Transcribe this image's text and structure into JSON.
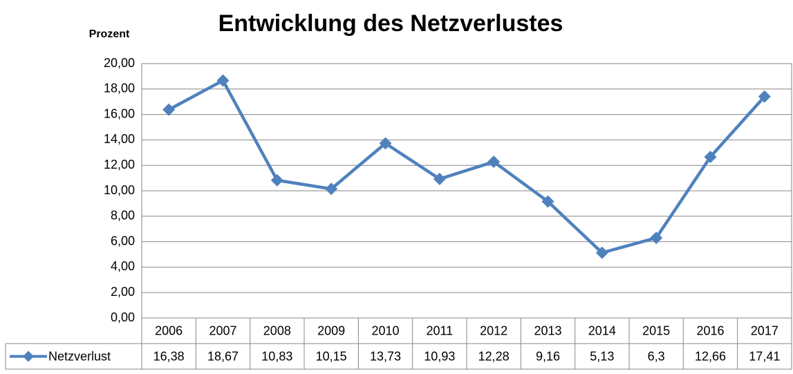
{
  "chart_data": {
    "type": "line",
    "title": "Entwicklung des Netzverlustes",
    "y_label": "Prozent",
    "categories": [
      "2006",
      "2007",
      "2008",
      "2009",
      "2010",
      "2011",
      "2012",
      "2013",
      "2014",
      "2015",
      "2016",
      "2017"
    ],
    "series": [
      {
        "name": "Netzverlust",
        "color": "#4f81bd",
        "values": [
          16.38,
          18.67,
          10.83,
          10.15,
          13.73,
          10.93,
          12.28,
          9.16,
          5.13,
          6.3,
          12.66,
          17.41
        ],
        "value_labels": [
          "16,38",
          "18,67",
          "10,83",
          "10,15",
          "13,73",
          "10,93",
          "12,28",
          "9,16",
          "5,13",
          "6,3",
          "12,66",
          "17,41"
        ]
      }
    ],
    "ylim": [
      0,
      20
    ],
    "yticks": [
      {
        "value": 0,
        "label": "0,00"
      },
      {
        "value": 2,
        "label": "2,00"
      },
      {
        "value": 4,
        "label": "4,00"
      },
      {
        "value": 6,
        "label": "6,00"
      },
      {
        "value": 8,
        "label": "8,00"
      },
      {
        "value": 10,
        "label": "10,00"
      },
      {
        "value": 12,
        "label": "12,00"
      },
      {
        "value": 14,
        "label": "14,00"
      },
      {
        "value": 16,
        "label": "16,00"
      },
      {
        "value": 18,
        "label": "18,00"
      },
      {
        "value": 20,
        "label": "20,00"
      }
    ],
    "grid": true
  }
}
